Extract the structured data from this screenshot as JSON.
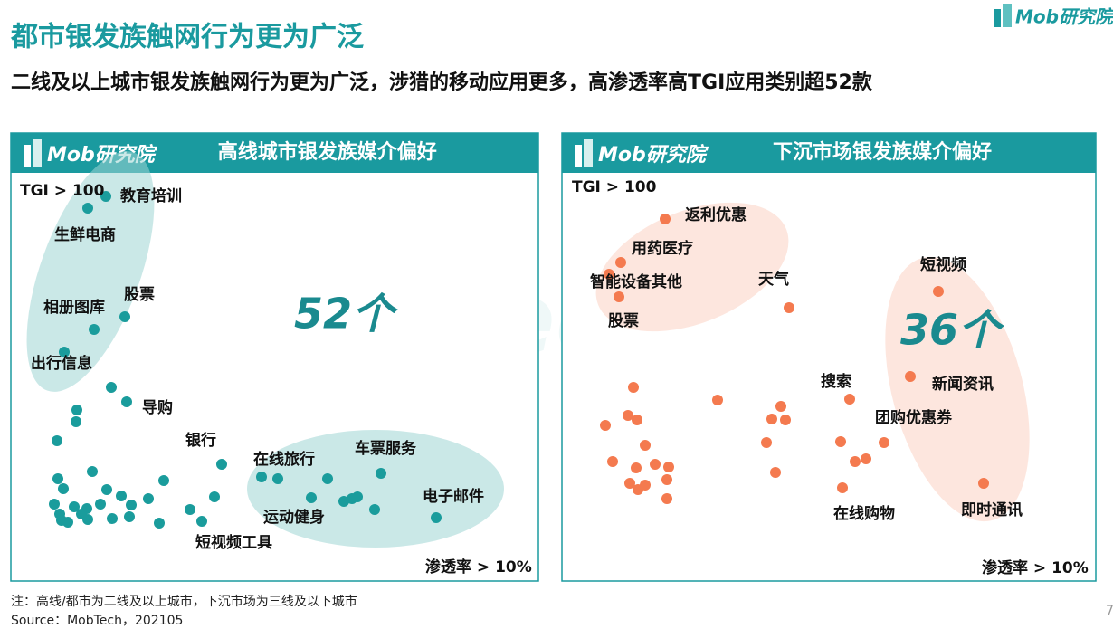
{
  "header": {
    "title": "都市银发族触网行为更为广泛",
    "subtitle": "二线及以上城市银发族触网行为更为广泛，涉猎的移动应用更多，高渗透率高TGI应用类别超52款",
    "logo": "Mob研究院"
  },
  "watermark": "MobTech 袤博",
  "panels": [
    {
      "logo": "Mob研究院",
      "title": "高线城市银发族媒介偏好",
      "tgi_label": "TGI > 100",
      "count": "52个",
      "penetration_label": "渗透率 > 10%",
      "labels": [
        "教育培训",
        "生鲜电商",
        "相册图库",
        "股票",
        "出行信息",
        "导购",
        "银行",
        "在线旅行",
        "车票服务",
        "电子邮件",
        "运动健身",
        "短视频工具"
      ]
    },
    {
      "logo": "Mob研究院",
      "title": "下沉市场银发族媒介偏好",
      "tgi_label": "TGI > 100",
      "count": "36个",
      "penetration_label": "渗透率 > 10%",
      "labels": [
        "返利优惠",
        "用药医疗",
        "智能设备其他",
        "股票",
        "天气",
        "短视频",
        "搜索",
        "新闻资讯",
        "团购优惠券",
        "在线购物",
        "即时通讯"
      ]
    }
  ],
  "footer": {
    "note": "注：高线/都市为二线及以上城市，下沉市场为三线及以下城市",
    "source": "Source：MobTech，202105",
    "page": "7"
  }
}
